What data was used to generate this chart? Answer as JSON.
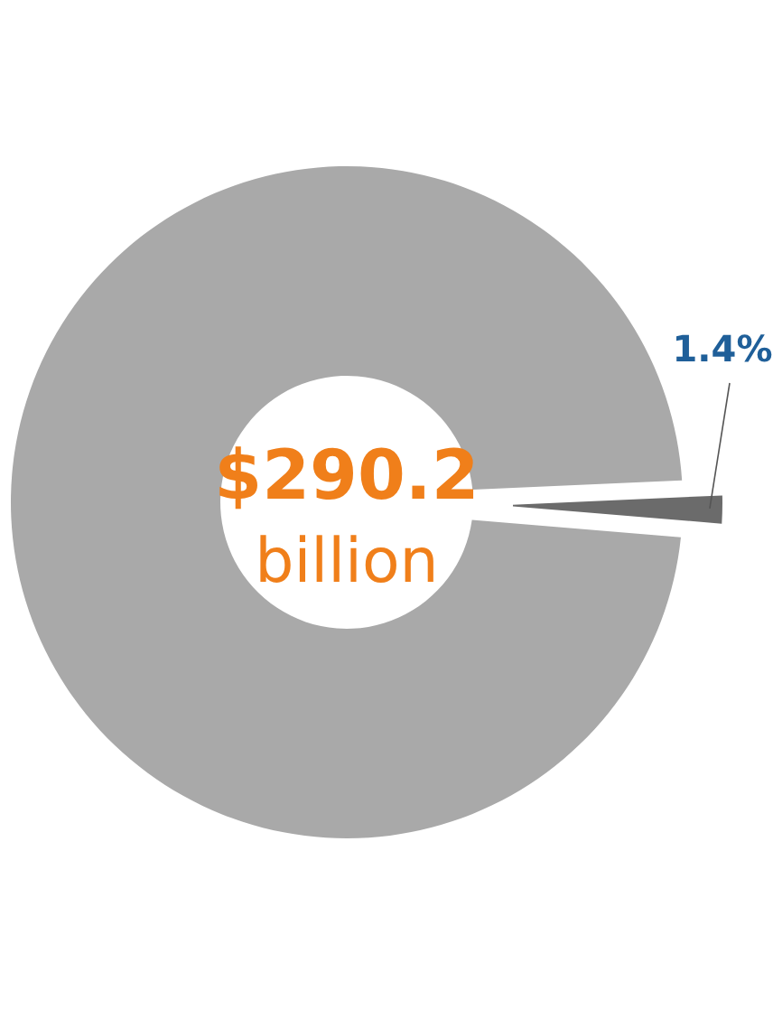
{
  "chart_data": {
    "type": "donut",
    "categories": [
      null,
      null
    ],
    "values": [
      1.4,
      98.6
    ],
    "colors": [
      "#6b6b6b",
      "#a9a9a9"
    ],
    "value_labels": [
      "1.4%",
      null
    ],
    "annotations": [
      "$290.2",
      "billion"
    ]
  }
}
